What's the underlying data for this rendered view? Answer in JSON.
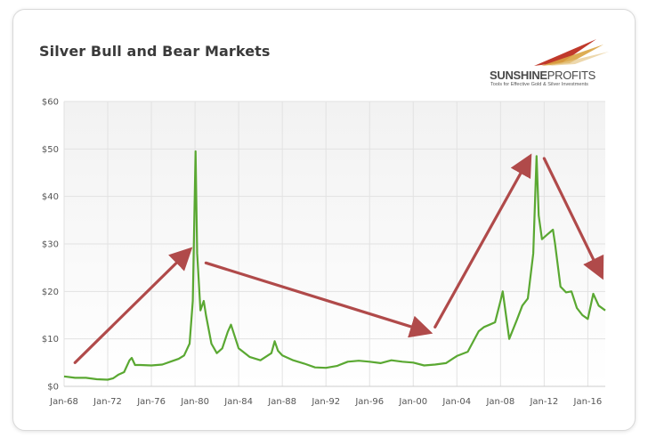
{
  "header": {
    "title": "Silver Bull and Bear Markets",
    "brand": {
      "name_bold": "SUNSHINE",
      "name_light": "PROFITS",
      "tagline": "Tools for Effective Gold & Silver Investments"
    }
  },
  "colors": {
    "line": "#5aa832",
    "arrow": "#b04a4a",
    "plot_bg_top": "#f2f2f2",
    "plot_bg_bottom": "#ffffff"
  },
  "chart_data": {
    "type": "line",
    "title": "Silver Bull and Bear Markets",
    "xlabel": "",
    "ylabel": "",
    "ylim": [
      0,
      60
    ],
    "xlim": [
      1968,
      2017.6
    ],
    "grid": true,
    "y_ticks": [
      "$0",
      "$10",
      "$20",
      "$30",
      "$40",
      "$50",
      "$60"
    ],
    "x_ticks": [
      "Jan-68",
      "Jan-72",
      "Jan-76",
      "Jan-80",
      "Jan-84",
      "Jan-88",
      "Jan-92",
      "Jan-96",
      "Jan-00",
      "Jan-04",
      "Jan-08",
      "Jan-12",
      "Jan-16"
    ],
    "series": [
      {
        "x": [
          1968.0,
          1969.0,
          1970.0,
          1971.0,
          1972.0,
          1972.5,
          1973.0,
          1973.5,
          1974.0,
          1974.2,
          1974.5,
          1975.0,
          1976.0,
          1977.0,
          1978.0,
          1978.5,
          1979.0,
          1979.5,
          1979.8,
          1980.05,
          1980.2,
          1980.5,
          1980.8,
          1981.0,
          1981.5,
          1982.0,
          1982.5,
          1983.0,
          1983.3,
          1984.0,
          1985.0,
          1986.0,
          1987.0,
          1987.3,
          1987.6,
          1988.0,
          1989.0,
          1990.0,
          1991.0,
          1992.0,
          1993.0,
          1994.0,
          1995.0,
          1996.0,
          1997.0,
          1998.0,
          1999.0,
          2000.0,
          2001.0,
          2002.0,
          2003.0,
          2004.0,
          2005.0,
          2006.0,
          2006.5,
          2007.0,
          2007.5,
          2008.0,
          2008.2,
          2008.8,
          2009.5,
          2010.0,
          2010.5,
          2011.0,
          2011.3,
          2011.5,
          2011.8,
          2012.3,
          2012.8,
          2013.0,
          2013.5,
          2014.0,
          2014.5,
          2015.0,
          2015.5,
          2016.0,
          2016.5,
          2017.0,
          2017.6
        ],
        "values": [
          2.1,
          1.8,
          1.8,
          1.5,
          1.4,
          1.7,
          2.5,
          3.0,
          5.5,
          6.0,
          4.5,
          4.5,
          4.4,
          4.6,
          5.4,
          5.8,
          6.5,
          9.0,
          18.0,
          49.5,
          28.0,
          16.0,
          18.0,
          15.0,
          9.0,
          7.0,
          8.0,
          11.5,
          13.0,
          8.0,
          6.2,
          5.5,
          7.0,
          9.5,
          7.5,
          6.5,
          5.5,
          4.8,
          4.0,
          3.9,
          4.3,
          5.2,
          5.4,
          5.2,
          4.9,
          5.5,
          5.2,
          5.0,
          4.4,
          4.6,
          4.9,
          6.4,
          7.3,
          11.6,
          12.5,
          13.0,
          13.5,
          18.0,
          20.0,
          10.0,
          14.0,
          17.0,
          18.5,
          28.0,
          48.5,
          36.0,
          31.0,
          32.0,
          33.0,
          30.0,
          21.0,
          19.8,
          20.0,
          16.5,
          15.0,
          14.2,
          19.5,
          17.0,
          16.0
        ]
      }
    ],
    "annotations": [
      {
        "type": "arrow",
        "from": [
          1969.0,
          5.0
        ],
        "to": [
          1979.4,
          28.5
        ]
      },
      {
        "type": "arrow",
        "from": [
          1981.0,
          26.0
        ],
        "to": [
          2001.3,
          11.5
        ]
      },
      {
        "type": "arrow",
        "from": [
          2002.0,
          12.5
        ],
        "to": [
          2010.6,
          48.0
        ]
      },
      {
        "type": "arrow",
        "from": [
          2012.0,
          48.0
        ],
        "to": [
          2017.2,
          23.5
        ]
      }
    ]
  }
}
